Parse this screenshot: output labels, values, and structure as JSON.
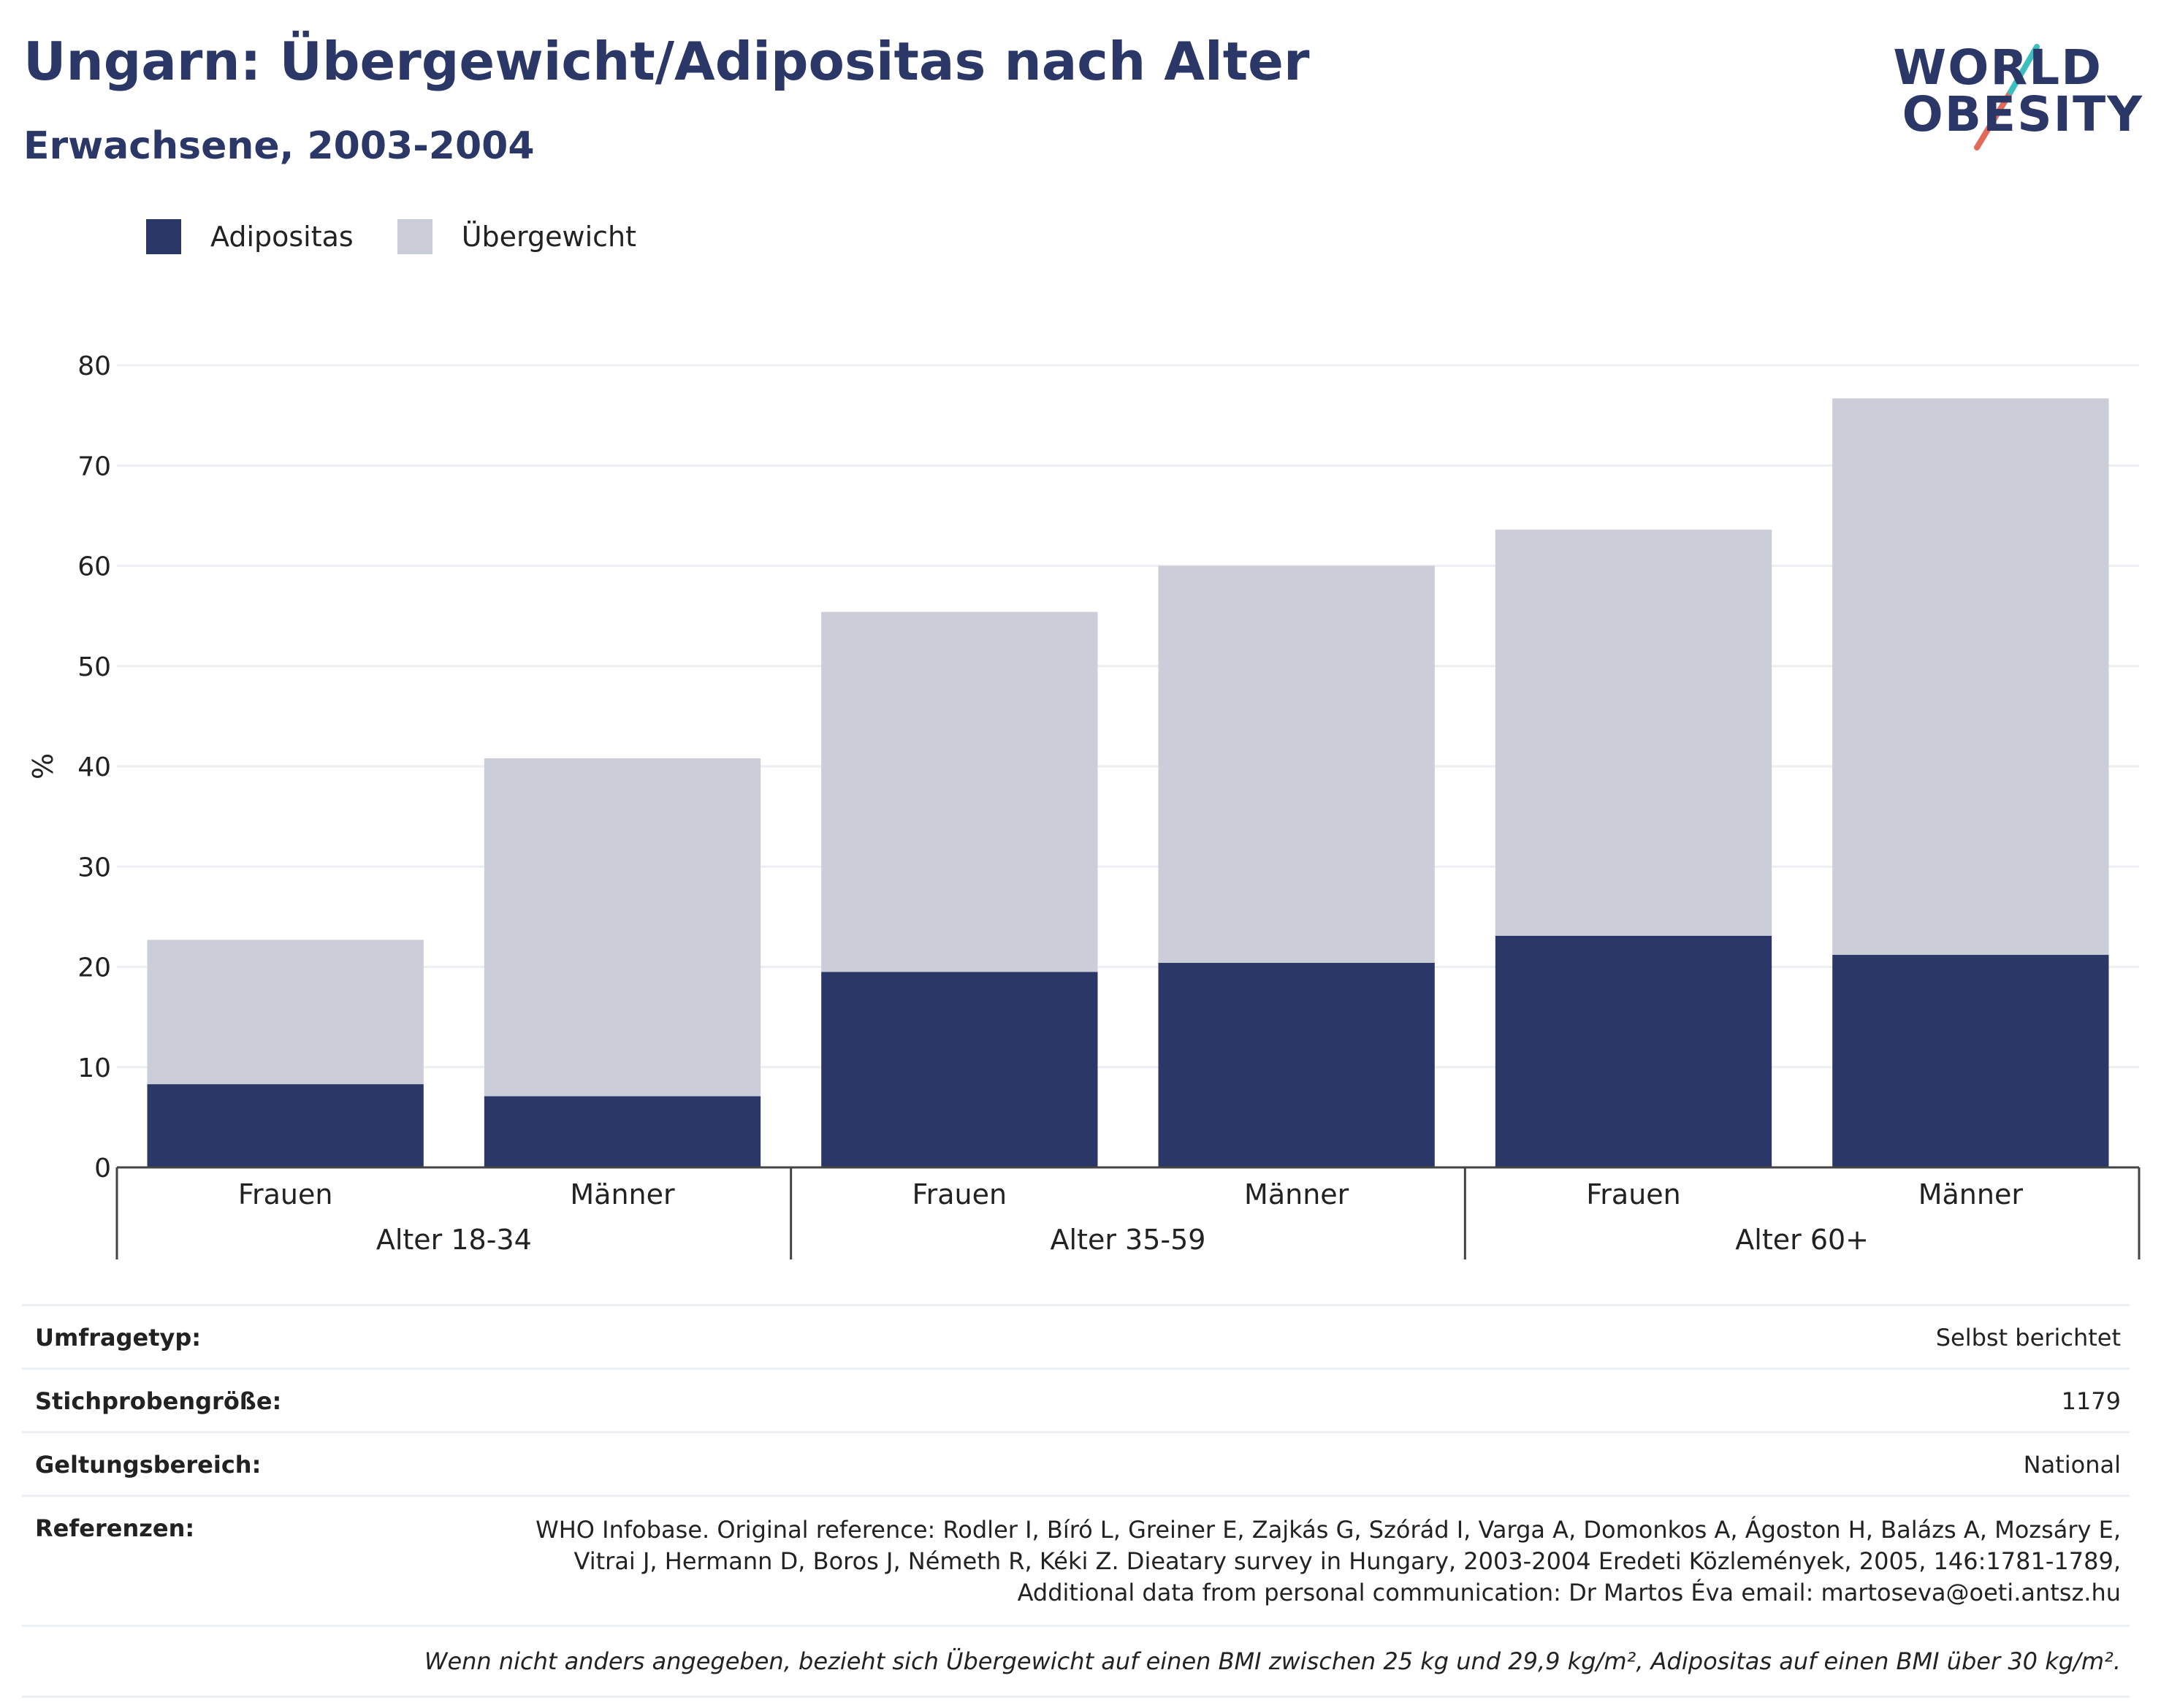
{
  "header": {
    "title": "Ungarn: Übergewicht/Adipositas nach Alter",
    "subtitle": "Erwachsene, 2003-2004"
  },
  "logo": {
    "line1": "WORLD",
    "line2": "OBESITY"
  },
  "legend": [
    {
      "label": "Adipositas",
      "color": "#2b3766"
    },
    {
      "label": "Übergewicht",
      "color": "#cbcdd8"
    }
  ],
  "chart_data": {
    "type": "bar",
    "stacked": true,
    "ylabel": "%",
    "ylim": [
      0,
      80
    ],
    "yticks": [
      0,
      10,
      20,
      30,
      40,
      50,
      60,
      70,
      80
    ],
    "grid": true,
    "legend_position": "top-left",
    "groups": [
      "Alter 18-34",
      "Alter 35-59",
      "Alter 60+"
    ],
    "categories": [
      "Frauen",
      "Männer",
      "Frauen",
      "Männer",
      "Frauen",
      "Männer"
    ],
    "category_group": [
      0,
      0,
      1,
      1,
      2,
      2
    ],
    "series": [
      {
        "name": "Adipositas",
        "color": "#2b3766",
        "values": [
          8.3,
          7.1,
          19.5,
          20.4,
          23.1,
          21.2
        ]
      },
      {
        "name": "Übergewicht",
        "color": "#cbcdd8",
        "values": [
          14.4,
          33.7,
          35.9,
          39.6,
          40.5,
          55.5
        ]
      }
    ]
  },
  "info": {
    "survey_type": {
      "label": "Umfragetyp:",
      "value": "Selbst berichtet"
    },
    "sample_size": {
      "label": "Stichprobengröße:",
      "value": "1179"
    },
    "scope": {
      "label": "Geltungsbereich:",
      "value": "National"
    },
    "references": {
      "label": "Referenzen:",
      "line1": "WHO Infobase. Original reference: Rodler I, Bíró L, Greiner E, Zajkás G, Szórád I, Varga A, Domonkos A, Ágoston H, Balázs A, Mozsáry E,",
      "line2": "Vitrai J, Hermann D, Boros J, Németh R, Kéki Z. Dieatary survey in Hungary, 2003-2004 Eredeti Közlemények, 2005, 146:1781-1789,",
      "line3": "Additional data from personal communication: Dr Martos Éva email: martoseva@oeti.antsz.hu"
    },
    "note": "Wenn nicht anders angegeben, bezieht sich Übergewicht auf einen BMI zwischen 25 kg und 29,9 kg/m², Adipositas auf einen BMI über 30 kg/m²."
  }
}
